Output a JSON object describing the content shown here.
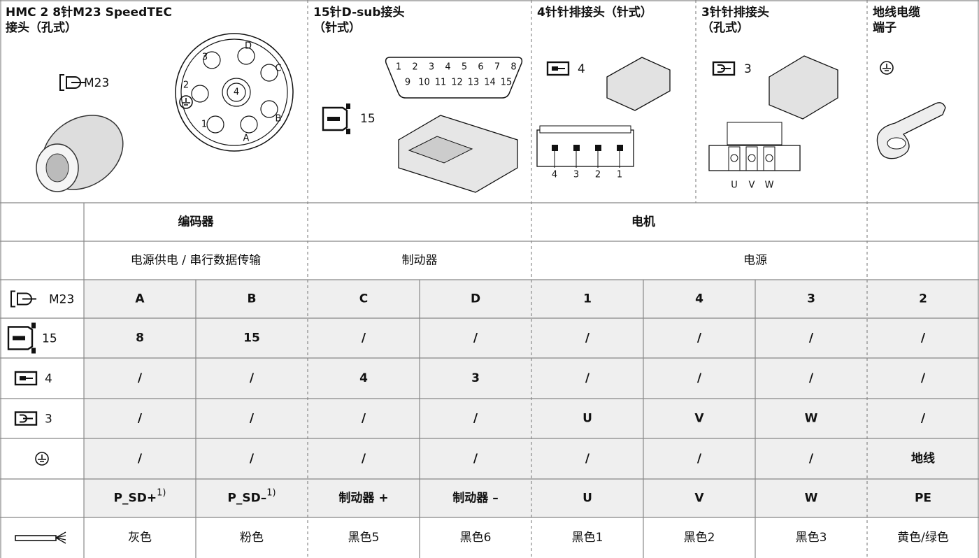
{
  "header": {
    "connectors": [
      {
        "title_lines": [
          "HMC 2 8针M23 SpeedTEC",
          "接头（孔式）"
        ],
        "symbol_label": "M23",
        "pins": [
          "3",
          "D",
          "C",
          "2",
          "4",
          "B",
          "1",
          "A"
        ]
      },
      {
        "title_lines": [
          "15针D-sub接头",
          "（针式）"
        ],
        "symbol_label": "15",
        "pins_row1": [
          "1",
          "2",
          "3",
          "4",
          "5",
          "6",
          "7",
          "8"
        ],
        "pins_row2": [
          "9",
          "10",
          "11",
          "12",
          "13",
          "14",
          "15"
        ]
      },
      {
        "title_lines": [
          "4针针排接头（针式）"
        ],
        "symbol_label": "4",
        "pins": [
          "4",
          "3",
          "2",
          "1"
        ]
      },
      {
        "title_lines": [
          "3针针排接头",
          "（孔式）"
        ],
        "symbol_label": "3",
        "pins": [
          "U",
          "V",
          "W"
        ]
      },
      {
        "title_lines": [
          "地线电缆",
          "端子"
        ]
      }
    ]
  },
  "table": {
    "groups": [
      "编码器",
      "电机"
    ],
    "subgroups": [
      "电源供电 / 串行数据传输",
      "制动器",
      "电源"
    ],
    "rows": [
      {
        "label": "M23",
        "cells": [
          "A",
          "B",
          "C",
          "D",
          "1",
          "4",
          "3",
          "2"
        ]
      },
      {
        "label": "15",
        "cells": [
          "8",
          "15",
          "/",
          "/",
          "/",
          "/",
          "/",
          "/"
        ]
      },
      {
        "label": "4",
        "cells": [
          "/",
          "/",
          "4",
          "3",
          "/",
          "/",
          "/",
          "/"
        ]
      },
      {
        "label": "3",
        "cells": [
          "/",
          "/",
          "/",
          "/",
          "U",
          "V",
          "W",
          "/"
        ]
      },
      {
        "cells": [
          "/",
          "/",
          "/",
          "/",
          "/",
          "/",
          "/",
          "地线"
        ]
      }
    ],
    "signals": [
      {
        "text": "P_SD+",
        "note": "1)"
      },
      {
        "text": "P_SD–",
        "note": "1)"
      },
      {
        "text": "制动器 +"
      },
      {
        "text": "制动器 –"
      },
      {
        "text": "U"
      },
      {
        "text": "V"
      },
      {
        "text": "W"
      },
      {
        "text": "PE"
      }
    ],
    "colors": [
      "灰色",
      "粉色",
      "黑色5",
      "黑色6",
      "黑色1",
      "黑色2",
      "黑色3",
      "黄色/绿色"
    ]
  }
}
